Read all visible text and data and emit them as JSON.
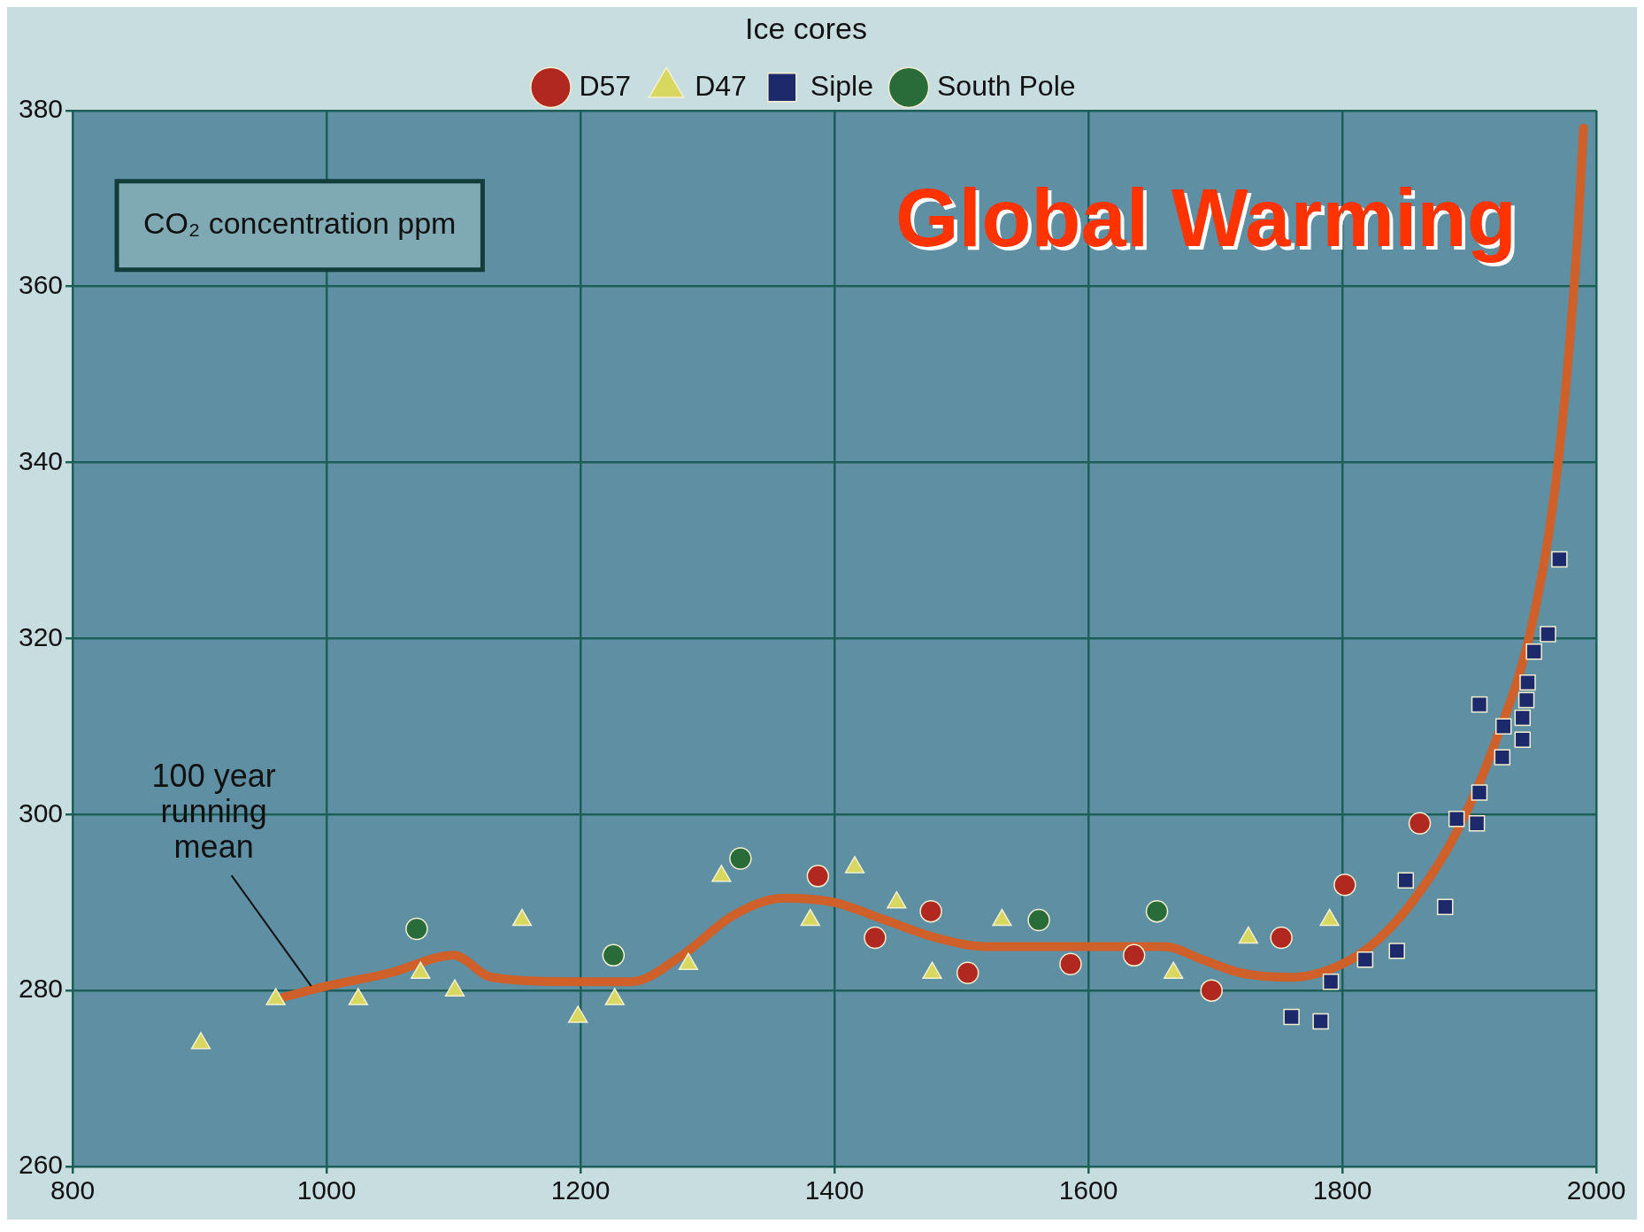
{
  "chart_data": {
    "type": "scatter",
    "title": "Global Warming",
    "ylabel": "CO₂ concentration ppm",
    "legend_title": "Ice cores",
    "legend": "top",
    "grid": true,
    "xlim": [
      800,
      2000
    ],
    "xticks": [
      800,
      1000,
      1200,
      1400,
      1600,
      1800,
      2000
    ],
    "ylim": [
      260,
      380
    ],
    "yticks": [
      260,
      280,
      300,
      320,
      340,
      360,
      380
    ],
    "series": [
      {
        "name": "D57",
        "color": "#b0281f",
        "marker": "circle",
        "x": [
          1387,
          1432,
          1476,
          1505,
          1586,
          1636,
          1697,
          1752,
          1802,
          1861
        ],
        "values": [
          293,
          286,
          289,
          282,
          283,
          284,
          280,
          286,
          292,
          299
        ]
      },
      {
        "name": "D47",
        "color": "#d8d860",
        "marker": "triangle",
        "x": [
          901,
          960,
          1025,
          1074,
          1101,
          1154,
          1198,
          1227,
          1285,
          1311,
          1381,
          1416,
          1449,
          1477,
          1532,
          1667,
          1726,
          1790
        ],
        "values": [
          274,
          279,
          279,
          282,
          280,
          288,
          277,
          279,
          283,
          293,
          288,
          294,
          290,
          282,
          288,
          282,
          286,
          288
        ]
      },
      {
        "name": "Siple",
        "color": "#1c2a6b",
        "marker": "square",
        "x": [
          1760,
          1783,
          1791,
          1818,
          1843,
          1850,
          1881,
          1890,
          1906,
          1908,
          1908,
          1926,
          1927,
          1942,
          1942,
          1945,
          1946,
          1951,
          1962,
          1971
        ],
        "values": [
          277,
          276.5,
          281,
          283.5,
          284.5,
          292.5,
          289.5,
          299.5,
          299,
          302.5,
          312.5,
          306.5,
          310,
          308.5,
          311,
          313,
          315,
          318.5,
          320.5,
          329
        ]
      },
      {
        "name": "South Pole",
        "color": "#2a6b3a",
        "marker": "circle",
        "x": [
          1071,
          1226,
          1326,
          1561,
          1654
        ],
        "values": [
          287,
          284,
          295,
          288,
          289
        ]
      },
      {
        "name": "100 year running mean",
        "type": "line",
        "color": "#d0602a",
        "marker": "none",
        "line_style": "solid",
        "x": [
          960,
          1000,
          1050,
          1100,
          1130,
          1200,
          1240,
          1280,
          1320,
          1360,
          1400,
          1440,
          1480,
          1520,
          1600,
          1660,
          1690,
          1720,
          1760,
          1800,
          1830,
          1860,
          1890,
          1920,
          1950,
          1970,
          1985,
          1990
        ],
        "values": [
          279,
          280.5,
          282,
          284,
          281.5,
          281,
          281,
          284,
          288.5,
          290.5,
          290,
          288,
          286,
          285,
          285,
          285,
          283.5,
          282,
          281.5,
          283,
          286,
          291,
          298,
          308,
          322,
          340,
          365,
          378
        ]
      }
    ]
  }
}
